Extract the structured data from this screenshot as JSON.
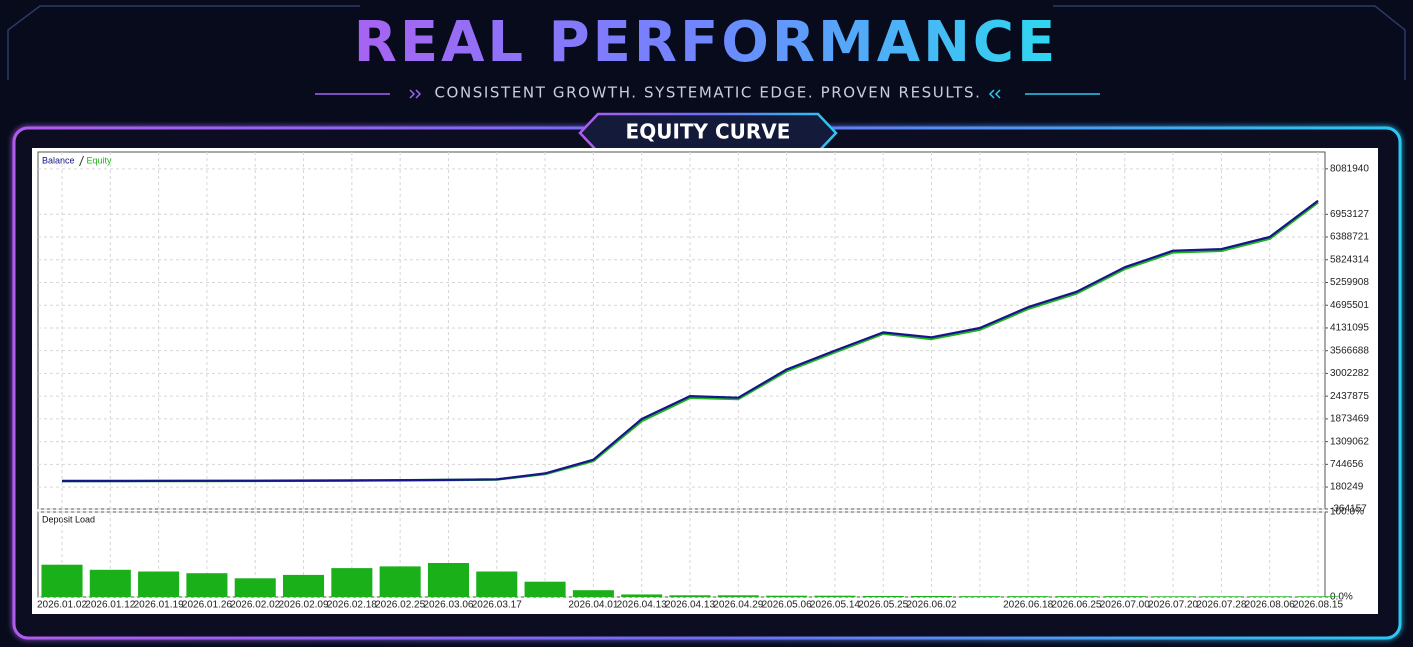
{
  "header": {
    "title": "REAL PERFORMANCE",
    "subtitle": "CONSISTENT GROWTH. SYSTEMATIC EDGE. PROVEN RESULTS.",
    "badge": "EQUITY CURVE"
  },
  "chart_data": [
    {
      "type": "line",
      "categories": [
        "2026.01.02",
        "2026.01.12",
        "2026.01.19",
        "2026.01.26",
        "2026.02.02",
        "2026.02.09",
        "2026.02.18",
        "2026.02.25",
        "2026.03.06",
        "2026.03.17",
        null,
        "2026.04.01",
        "2026.04.13",
        "2026.04.13",
        "2026.04.29",
        "2026.05.06",
        "2026.05.14",
        "2026.05.25",
        "2026.06.02",
        null,
        "2026.06.18",
        "2026.06.25",
        "2026.07.00",
        "2026.07.20",
        "2026.07.28",
        "2026.08.06",
        "2026.08.15"
      ],
      "series": [
        {
          "name": "Equity",
          "color": "#1fb31f",
          "values": [
            329000,
            330000,
            332000,
            334000,
            336000,
            339000,
            343000,
            348000,
            356000,
            368000,
            505000,
            830000,
            1820000,
            2400000,
            2370000,
            3060000,
            3530000,
            3990000,
            3860000,
            4090000,
            4610000,
            4990000,
            5600000,
            6010000,
            6050000,
            6350000,
            7250000
          ]
        },
        {
          "name": "Balance",
          "color": "#16168a",
          "values": [
            330000,
            331000,
            333000,
            335000,
            337000,
            340000,
            344000,
            350000,
            358000,
            372000,
            520000,
            860000,
            1870000,
            2440000,
            2400000,
            3100000,
            3570000,
            4020000,
            3900000,
            4130000,
            4650000,
            5030000,
            5640000,
            6050000,
            6090000,
            6390000,
            7290000
          ]
        }
      ],
      "ylim": [
        -364157,
        8500000
      ],
      "yticks": [
        -364157,
        180249,
        744656,
        1309062,
        1873469,
        2437875,
        3002282,
        3566688,
        4131095,
        4695501,
        5259908,
        5824314,
        6388721,
        6953127,
        8081940
      ],
      "grid": true
    },
    {
      "type": "bar",
      "title": "Deposit Load",
      "color": "#19b019",
      "values": [
        38,
        32,
        30,
        28,
        22,
        26,
        34,
        36,
        40,
        30,
        18,
        8,
        3,
        2,
        2,
        1.5,
        1.5,
        1.2,
        1.2,
        1,
        1,
        1,
        1,
        0.8,
        0.8,
        0.8,
        0.8
      ],
      "ylim": [
        0,
        100
      ],
      "yticks": [
        {
          "value": 0,
          "label": "0.0%"
        },
        {
          "value": 100,
          "label": "100.0%"
        }
      ],
      "grid": true
    }
  ]
}
